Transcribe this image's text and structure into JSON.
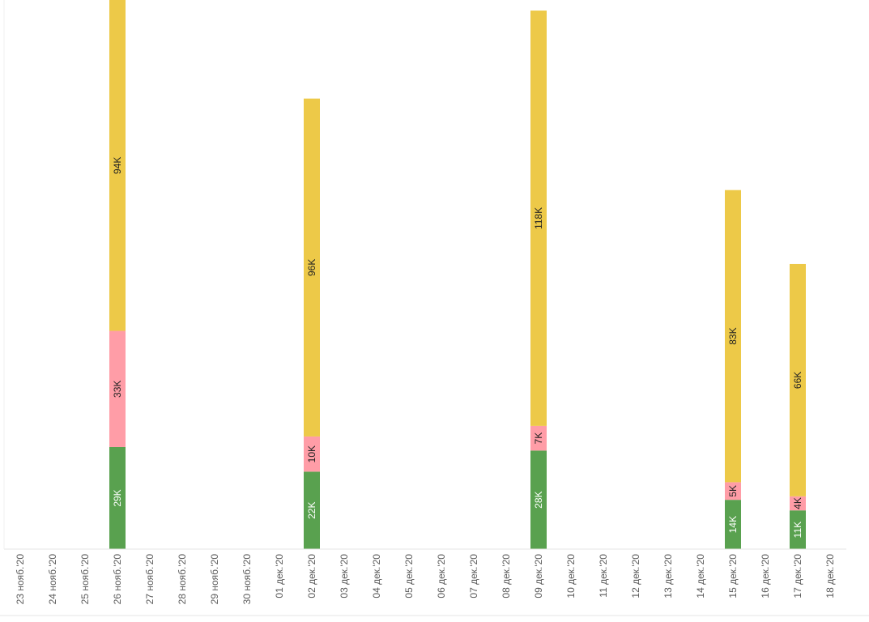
{
  "chart_data": {
    "type": "bar",
    "stacked": true,
    "orientation": "vertical",
    "categories": [
      "23 нояб.'20",
      "24 нояб.'20",
      "25 нояб.'20",
      "26 нояб.'20",
      "27 нояб.'20",
      "28 нояб.'20",
      "29 нояб.'20",
      "30 нояб.'20",
      "01 дек.'20",
      "02 дек.'20",
      "03 дек.'20",
      "04 дек.'20",
      "05 дек.'20",
      "06 дек.'20",
      "07 дек.'20",
      "08 дек.'20",
      "09 дек.'20",
      "10 дек.'20",
      "11 дек.'20",
      "12 дек.'20",
      "13 дек.'20",
      "14 дек.'20",
      "15 дек.'20",
      "16 дек.'20",
      "17 дек.'20",
      "18 дек.'20"
    ],
    "series": [
      {
        "color": "#59a14f",
        "values": [
          null,
          null,
          null,
          29000,
          null,
          null,
          null,
          null,
          null,
          22000,
          null,
          null,
          null,
          null,
          null,
          null,
          28000,
          null,
          null,
          null,
          null,
          null,
          14000,
          null,
          11000,
          null
        ],
        "labels": [
          null,
          null,
          null,
          "29K",
          null,
          null,
          null,
          null,
          null,
          "22K",
          null,
          null,
          null,
          null,
          null,
          null,
          "28K",
          null,
          null,
          null,
          null,
          null,
          "14K",
          null,
          "11K",
          null
        ]
      },
      {
        "color": "#ff9da7",
        "values": [
          null,
          null,
          null,
          33000,
          null,
          null,
          null,
          null,
          null,
          10000,
          null,
          null,
          null,
          null,
          null,
          null,
          7000,
          null,
          null,
          null,
          null,
          null,
          5000,
          null,
          4000,
          null
        ],
        "labels": [
          null,
          null,
          null,
          "33K",
          null,
          null,
          null,
          null,
          null,
          "10K",
          null,
          null,
          null,
          null,
          null,
          null,
          "7K",
          null,
          null,
          null,
          null,
          null,
          "5K",
          null,
          "4K",
          null
        ]
      },
      {
        "color": "#edc948",
        "values": [
          null,
          null,
          null,
          94000,
          null,
          null,
          null,
          null,
          null,
          96000,
          null,
          null,
          null,
          null,
          null,
          null,
          118000,
          null,
          null,
          null,
          null,
          null,
          83000,
          null,
          66000,
          null
        ],
        "labels": [
          null,
          null,
          null,
          "94K",
          null,
          null,
          null,
          null,
          null,
          "96K",
          null,
          null,
          null,
          null,
          null,
          null,
          "118K",
          null,
          null,
          null,
          null,
          null,
          "83K",
          null,
          "66K",
          null
        ]
      }
    ],
    "ylim": [
      0,
      156000
    ],
    "grid": false,
    "legend": "none",
    "title": "",
    "xlabel": "",
    "ylabel": ""
  }
}
